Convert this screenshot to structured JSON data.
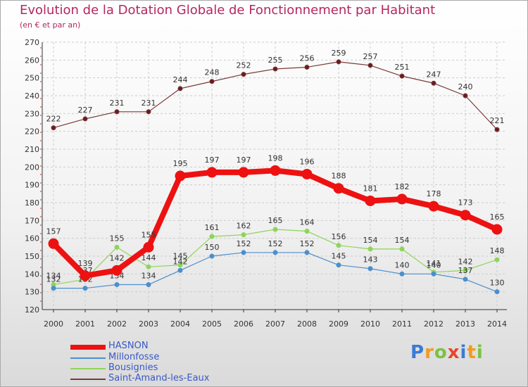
{
  "header": {
    "title": "Evolution de la Dotation Globale de Fonctionnement par Habitant",
    "subtitle": "(en € et par an)"
  },
  "chart_data": {
    "type": "line",
    "title": "Evolution de la Dotation Globale de Fonctionnement par Habitant",
    "subtitle": "(en € et par an)",
    "xlabel": "",
    "ylabel": "",
    "x": [
      "2000",
      "2001",
      "2002",
      "2003",
      "2004",
      "2005",
      "2006",
      "2007",
      "2008",
      "2009",
      "2010",
      "2011",
      "2012",
      "2013",
      "2014"
    ],
    "ylim": [
      120,
      270
    ],
    "yticks": [
      120,
      130,
      140,
      150,
      160,
      170,
      180,
      190,
      200,
      210,
      220,
      230,
      240,
      250,
      260,
      270
    ],
    "grid": true,
    "series": [
      {
        "name": "Saint-Amand-les-Eaux",
        "color": "#6b1a1f",
        "line_color": "#7a3a3a",
        "values": [
          222,
          227,
          231,
          231,
          244,
          248,
          252,
          255,
          256,
          259,
          257,
          251,
          247,
          240,
          221
        ]
      },
      {
        "name": "Bousignies",
        "color": "#8ed45a",
        "line_color": "#8ed45a",
        "values": [
          134,
          137,
          155,
          144,
          145,
          161,
          162,
          165,
          164,
          156,
          154,
          154,
          141,
          142,
          148
        ]
      },
      {
        "name": "Millonfosse",
        "color": "#4b8fcc",
        "line_color": "#4b8fcc",
        "values": [
          132,
          132,
          134,
          134,
          142,
          150,
          152,
          152,
          152,
          145,
          143,
          140,
          140,
          137,
          130
        ]
      },
      {
        "name": "HASNON",
        "color": "#ee1111",
        "line_color": "#ee1111",
        "values": [
          157,
          139,
          142,
          155,
          195,
          197,
          197,
          198,
          196,
          188,
          181,
          182,
          178,
          173,
          165
        ]
      }
    ],
    "legend": [
      "HASNON",
      "Millonfosse",
      "Bousignies",
      "Saint-Amand-les-Eaux"
    ],
    "legend_position": "bottom-left"
  },
  "logo": {
    "letters": [
      "P",
      "r",
      "o",
      "x",
      "i",
      "t",
      "i"
    ],
    "colors": [
      "#3a7bd5",
      "#f29b1f",
      "#7cc242",
      "#e8452c",
      "#3a7bd5",
      "#f29b1f",
      "#7cc242"
    ]
  }
}
